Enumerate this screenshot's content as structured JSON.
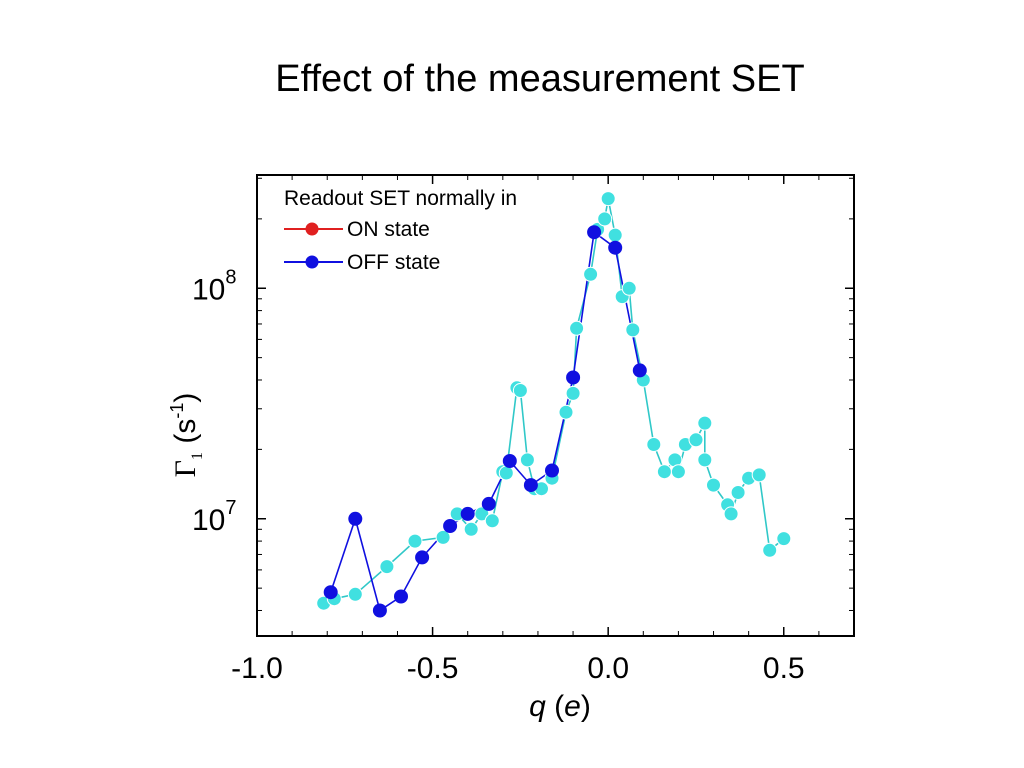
{
  "slide": {
    "title": "Effect of the measurement SET"
  },
  "chart_data": {
    "type": "line",
    "title": "Effect of the measurement SET",
    "xlabel": {
      "italic": "q",
      "rest_open": " (",
      "unit": "e",
      "rest_close": ")"
    },
    "ylabel": {
      "symbol": "Γ",
      "subscript": "1",
      "unit_open": " (s",
      "sup": "-1",
      "unit_close": ")"
    },
    "x_ticks": [
      "-1.0",
      "-0.5",
      "0.0",
      "0.5"
    ],
    "y_ticks": [
      {
        "base": "10",
        "exp": "7",
        "value": 10000000
      },
      {
        "base": "10",
        "exp": "8",
        "value": 100000000
      }
    ],
    "xlim": [
      -1.0,
      0.7
    ],
    "ylim": [
      3100000,
      310000000
    ],
    "y_scale": "log",
    "legend": {
      "position": "top-left",
      "header": "Readout SET normally in",
      "entries": [
        {
          "label": "ON state",
          "color": "#e02020"
        },
        {
          "label": "OFF state",
          "color": "#1010e0"
        }
      ]
    },
    "series": [
      {
        "name": "ON state",
        "line_color": "#30c8c8",
        "marker_color": "#40e0e0",
        "x": [
          -0.81,
          -0.78,
          -0.72,
          -0.63,
          -0.55,
          -0.47,
          -0.43,
          -0.39,
          -0.36,
          -0.33,
          -0.3,
          -0.29,
          -0.26,
          -0.25,
          -0.23,
          -0.21,
          -0.19,
          -0.16,
          -0.12,
          -0.1,
          -0.09,
          -0.05,
          -0.03,
          -0.01,
          0.0,
          0.02,
          0.04,
          0.06,
          0.07,
          0.1,
          0.13,
          0.16,
          0.19,
          0.2,
          0.22,
          0.25,
          0.275,
          0.275,
          0.3,
          0.34,
          0.35,
          0.37,
          0.4,
          0.43,
          0.46,
          0.5
        ],
        "y": [
          4300000,
          4500000,
          4700000,
          6200000,
          8000000,
          8300000,
          10500000,
          9000000,
          10500000,
          9800000,
          16000000,
          15800000,
          37000000,
          36000000,
          18000000,
          13500000,
          13500000,
          15000000,
          29000000,
          35000000,
          67000000,
          115000000,
          180000000,
          200000000,
          245000000,
          170000000,
          92000000,
          100000000,
          66000000,
          40000000,
          21000000,
          16000000,
          18000000,
          16000000,
          21000000,
          22000000,
          26000000,
          18000000,
          14000000,
          11500000,
          10500000,
          13000000,
          15000000,
          15500000,
          7300000,
          8200000
        ]
      },
      {
        "name": "OFF state",
        "line_color": "#1010e0",
        "marker_color": "#1010e0",
        "x": [
          -0.79,
          -0.72,
          -0.65,
          -0.59,
          -0.53,
          -0.45,
          -0.4,
          -0.34,
          -0.28,
          -0.22,
          -0.16,
          -0.1,
          -0.04,
          0.02,
          0.09
        ],
        "y": [
          4800000,
          10000000,
          4000000,
          4600000,
          6800000,
          9300000,
          10500000,
          11600000,
          17800000,
          14000000,
          16200000,
          41000000,
          175000000,
          150000000,
          44000000
        ]
      }
    ],
    "grid": false
  }
}
